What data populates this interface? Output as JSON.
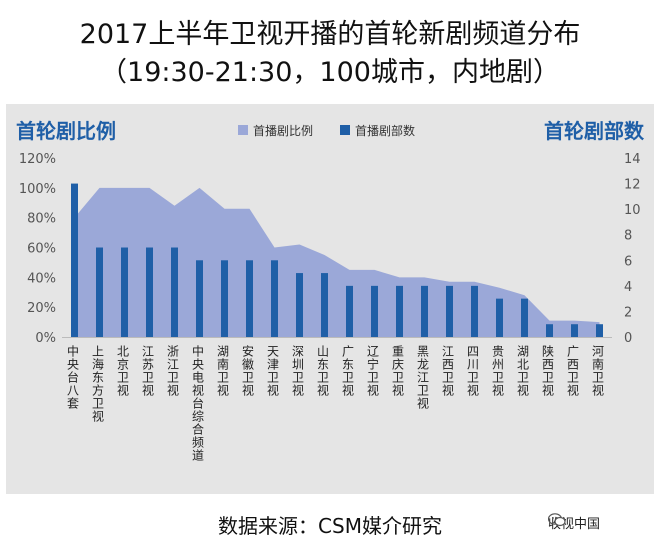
{
  "title": "2017上半年卫视开播的首轮新剧频道分布",
  "subtitle": "（19:30-21:30，100城市，内地剧）",
  "source": "数据来源：CSM媒介研究",
  "watermark": "收视中国",
  "chart_data": {
    "type": "bar+area",
    "left_axis_title": "首轮剧比例",
    "right_axis_title": "首轮剧部数",
    "left_axis_ticks": [
      "0%",
      "20%",
      "40%",
      "60%",
      "80%",
      "100%",
      "120%"
    ],
    "right_axis_ticks": [
      "0",
      "2",
      "4",
      "6",
      "8",
      "10",
      "12",
      "14"
    ],
    "left_ylim": [
      0,
      120
    ],
    "right_ylim": [
      0,
      14
    ],
    "legend_position": "top-center",
    "categories": [
      "中央台八套",
      "上海东方卫视",
      "北京卫视",
      "江苏卫视",
      "浙江卫视",
      "中央电视台综合频道",
      "湖南卫视",
      "安徽卫视",
      "天津卫视",
      "深圳卫视",
      "山东卫视",
      "广东卫视",
      "辽宁卫视",
      "重庆卫视",
      "黑龙江卫视",
      "江西卫视",
      "四川卫视",
      "贵州卫视",
      "湖北卫视",
      "陕西卫视",
      "广西卫视",
      "河南卫视"
    ],
    "series": [
      {
        "name": "首播剧比例",
        "type": "area",
        "axis": "left",
        "color": "#9ba8d8",
        "values": [
          80,
          100,
          100,
          100,
          88,
          100,
          86,
          86,
          60,
          62,
          55,
          45,
          45,
          40,
          40,
          37,
          37,
          33,
          28,
          11,
          11,
          10
        ]
      },
      {
        "name": "首播剧部数",
        "type": "bar",
        "axis": "right",
        "color": "#1f5fa7",
        "values": [
          12,
          7,
          7,
          7,
          7,
          6,
          6,
          6,
          6,
          5,
          5,
          4,
          4,
          4,
          4,
          4,
          4,
          3,
          3,
          1,
          1,
          1
        ]
      }
    ]
  }
}
